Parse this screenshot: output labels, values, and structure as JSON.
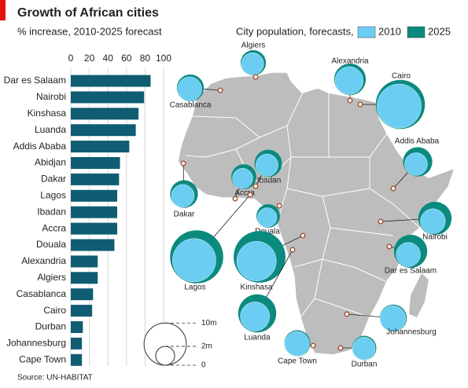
{
  "chart_data": [
    {
      "type": "bar",
      "orientation": "horizontal",
      "title": "Growth of African cities",
      "subtitle": "% increase, 2010-2025 forecast",
      "source": "Source: UN-HABITAT",
      "categories": [
        "Dar es Salaam",
        "Nairobi",
        "Kinshasa",
        "Luanda",
        "Addis Ababa",
        "Abidjan",
        "Dakar",
        "Lagos",
        "Ibadan",
        "Accra",
        "Douala",
        "Alexandria",
        "Algiers",
        "Casablanca",
        "Cairo",
        "Durban",
        "Johannesburg",
        "Cape Town"
      ],
      "values": [
        86,
        79,
        73,
        70,
        63,
        53,
        52,
        50,
        50,
        50,
        47,
        29,
        29,
        24,
        23,
        13,
        12,
        12
      ],
      "color": "#0f5c73",
      "xlim": [
        0,
        100
      ],
      "xticks": [
        0,
        20,
        40,
        60,
        80,
        100
      ],
      "grid": true
    },
    {
      "type": "bubble-map",
      "legend_title": "City population, forecasts,",
      "categories": [
        "Algiers",
        "Casablanca",
        "Alexandria",
        "Cairo",
        "Addis Ababa",
        "Dakar",
        "Accra",
        "Ibadan",
        "Douala",
        "Lagos",
        "Kinshasa",
        "Luanda",
        "Nairobi",
        "Dar es Salaam",
        "Johannesburg",
        "Cape Town",
        "Durban"
      ],
      "series": [
        {
          "name": "2010",
          "color": "#6ccdf2",
          "values": [
            2.8,
            3.3,
            4.4,
            11.0,
            2.9,
            2.9,
            2.3,
            2.8,
            2.1,
            10.6,
            8.8,
            4.8,
            3.5,
            3.3,
            3.7,
            3.4,
            2.9
          ]
        },
        {
          "name": "2025",
          "color": "#0b8a7e",
          "values": [
            3.6,
            4.1,
            5.6,
            13.5,
            4.8,
            4.3,
            3.5,
            4.2,
            3.1,
            15.8,
            15.0,
            8.1,
            6.2,
            6.2,
            4.1,
            3.8,
            3.3
          ]
        }
      ],
      "size_ticks": [
        {
          "value": 10,
          "label": "10m"
        },
        {
          "value": 2,
          "label": "2m"
        },
        0
      ]
    }
  ]
}
